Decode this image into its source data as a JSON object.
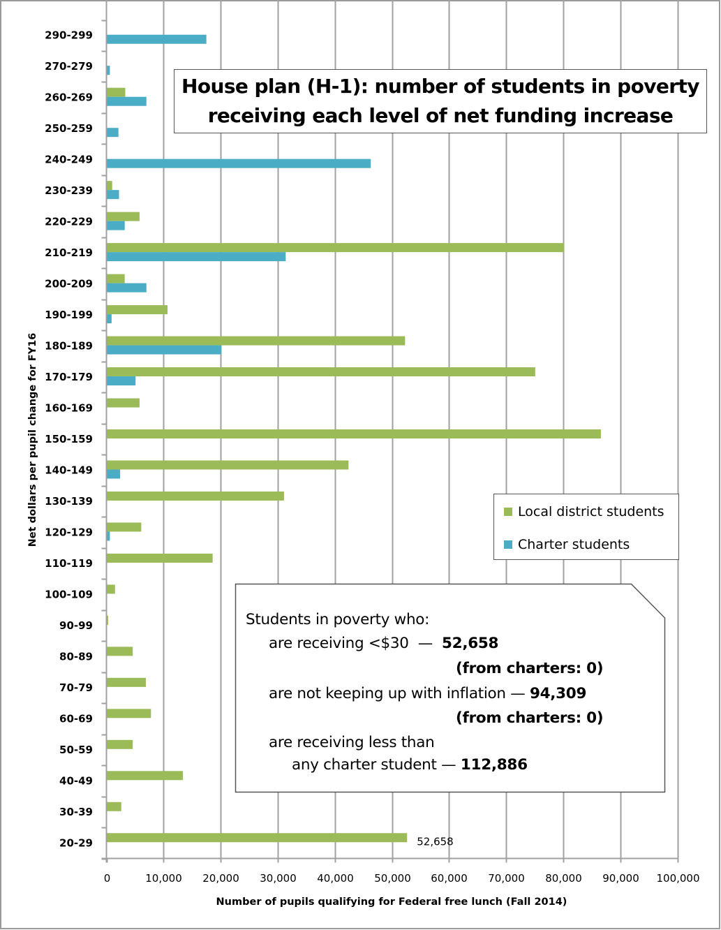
{
  "chart_data": {
    "type": "bar",
    "orientation": "horizontal",
    "title": "House plan (H-1): number of students in poverty receiving each level of net funding increase",
    "title_lines": [
      "House plan (H-1): number of students in poverty",
      "receiving each level of net funding increase"
    ],
    "xlabel": "Number of pupils qualifying for Federal free lunch (Fall 2014)",
    "ylabel": "Net dollars per pupil change for FY16",
    "xlim": [
      0,
      100000
    ],
    "x_ticks": [
      0,
      10000,
      20000,
      30000,
      40000,
      50000,
      60000,
      70000,
      80000,
      90000,
      100000
    ],
    "x_tick_labels": [
      "0",
      "10,000",
      "20,000",
      "30,000",
      "40,000",
      "50,000",
      "60,000",
      "70,000",
      "80,000",
      "90,000",
      "100,000"
    ],
    "grid": "vertical",
    "legend_position": "right",
    "categories": [
      "290-299",
      "270-279",
      "260-269",
      "250-259",
      "240-249",
      "230-239",
      "220-229",
      "210-219",
      "200-209",
      "190-199",
      "180-189",
      "170-179",
      "160-169",
      "150-159",
      "140-149",
      "130-139",
      "120-129",
      "110-119",
      "100-109",
      "90-99",
      "80-89",
      "70-79",
      "60-69",
      "50-59",
      "40-49",
      "30-39",
      "20-29"
    ],
    "series": [
      {
        "name": "Local district students",
        "color": "#9bbb59",
        "values": [
          0,
          100,
          3300,
          0,
          0,
          1000,
          5800,
          80200,
          3200,
          10700,
          52300,
          75100,
          5800,
          86600,
          42400,
          31100,
          6100,
          18600,
          1500,
          300,
          4600,
          6900,
          7800,
          4600,
          13400,
          2600,
          52658
        ]
      },
      {
        "name": "Charter students",
        "color": "#4bacc6",
        "values": [
          17500,
          600,
          7000,
          2100,
          46300,
          2200,
          3200,
          31400,
          7000,
          900,
          20100,
          5100,
          0,
          100,
          2400,
          0,
          600,
          0,
          0,
          0,
          0,
          0,
          0,
          0,
          0,
          0,
          0
        ]
      }
    ],
    "data_labels": [
      {
        "category": "20-29",
        "series": "Local district students",
        "text": "52,658"
      }
    ]
  },
  "annotation": {
    "heading": "Students in poverty who:",
    "line1_text": "are receiving <$30  —  ",
    "line1_value": "52,658",
    "line1_sub": "(from charters: 0)",
    "line2_text": "are not keeping up with inflation — ",
    "line2_value": "94,309",
    "line2_sub": "(from charters: 0)",
    "line3_text": "are receiving less than",
    "line4_text": "any charter student — ",
    "line4_value": "112,886"
  },
  "colors": {
    "gridline": "#a0a0a0",
    "frame": "#9a9a9a"
  }
}
